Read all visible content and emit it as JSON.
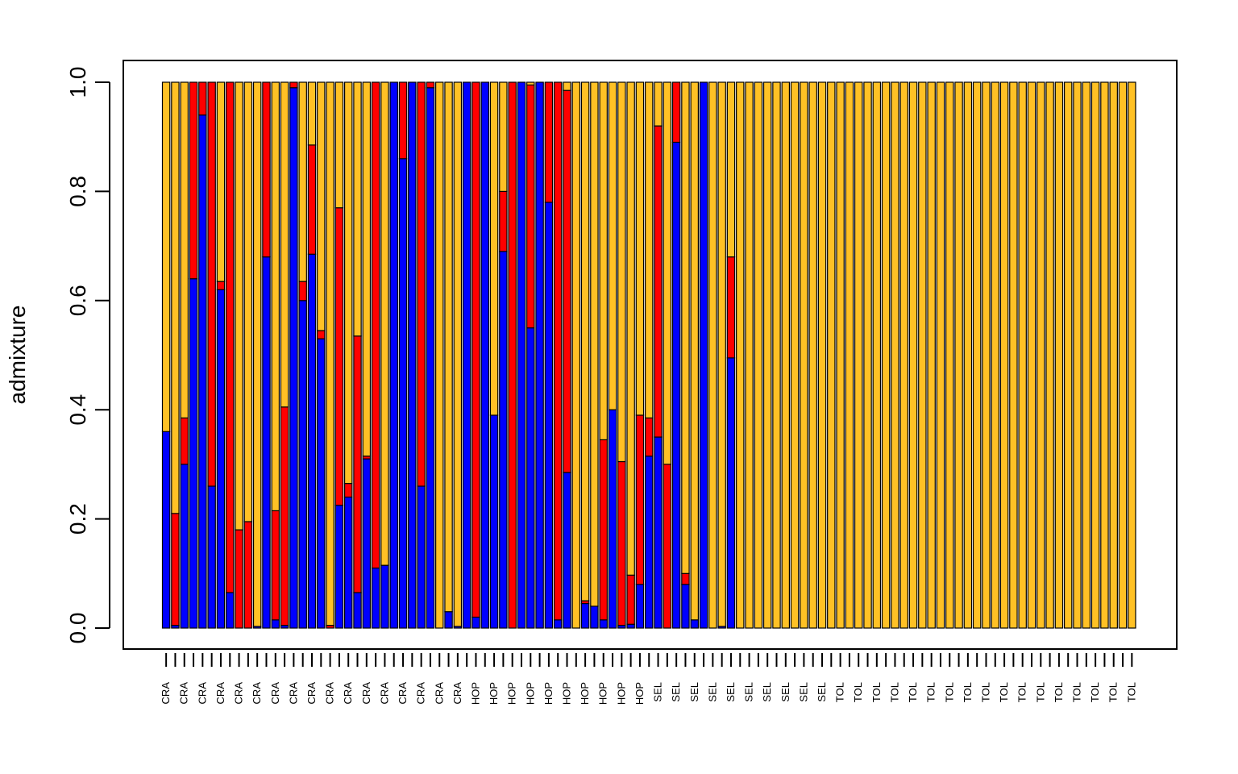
{
  "chart_data": {
    "type": "bar",
    "stacked": true,
    "ylabel": "admixture",
    "ylim": [
      0,
      1
    ],
    "yticks": [
      "0.0",
      "0.2",
      "0.4",
      "0.6",
      "0.8",
      "1.0"
    ],
    "colors": [
      "#0000FF",
      "#FF0000",
      "#FFC125"
    ],
    "categories": [
      "CRA",
      "CRA",
      "CRA",
      "CRA",
      "CRA",
      "CRA",
      "CRA",
      "CRA",
      "CRA",
      "CRA",
      "CRA",
      "CRA",
      "CRA",
      "CRA",
      "CRA",
      "CRA",
      "CRA",
      "CRA",
      "CRA",
      "CRA",
      "CRA",
      "CRA",
      "CRA",
      "CRA",
      "CRA",
      "CRA",
      "CRA",
      "CRA",
      "CRA",
      "CRA",
      "CRA",
      "CRA",
      "CRA",
      "HOP",
      "HOP",
      "HOP",
      "HOP",
      "HOP",
      "HOP",
      "HOP",
      "HOP",
      "HOP",
      "HOP",
      "HOP",
      "HOP",
      "HOP",
      "HOP",
      "HOP",
      "HOP",
      "HOP",
      "HOP",
      "HOP",
      "HOP",
      "SEL",
      "SEL",
      "SEL",
      "SEL",
      "SEL",
      "SEL",
      "SEL",
      "SEL",
      "SEL",
      "SEL",
      "SEL",
      "SEL",
      "SEL",
      "SEL",
      "SEL",
      "SEL",
      "SEL",
      "SEL",
      "SEL",
      "SEL",
      "SEL",
      "TOL",
      "TOL",
      "TOL",
      "TOL",
      "TOL",
      "TOL",
      "TOL",
      "TOL",
      "TOL",
      "TOL",
      "TOL",
      "TOL",
      "TOL",
      "TOL",
      "TOL",
      "TOL",
      "TOL",
      "TOL",
      "TOL",
      "TOL",
      "TOL",
      "TOL",
      "TOL",
      "TOL",
      "TOL",
      "TOL",
      "TOL",
      "TOL",
      "TOL",
      "TOL",
      "TOL",
      "TOL",
      "TOL"
    ],
    "series": [
      {
        "values": [
          0.36,
          0.005,
          0.3,
          0.64,
          0.94,
          0.26,
          0.62,
          0.065,
          0.0,
          0.0,
          0.003,
          0.68,
          0.015,
          0.005,
          0.99,
          0.6,
          0.685,
          0.53,
          0.0,
          0.225,
          0.24,
          0.065,
          0.31,
          0.11,
          0.115,
          1.0,
          0.86,
          1.0,
          0.26,
          0.99,
          0.0,
          0.03,
          0.003,
          1.0,
          0.02,
          1.0,
          0.39,
          0.69,
          0.0,
          1.0,
          0.55,
          1.0,
          0.78,
          0.015,
          0.285,
          0.0,
          0.045,
          0.04,
          0.015,
          0.4,
          0.005,
          0.007,
          0.08,
          0.315,
          0.35,
          0.0,
          0.89,
          0.08,
          0.015,
          1.0,
          0.0,
          0.003,
          0.495,
          0.0,
          0.0,
          0.0,
          0.0,
          0.0,
          0.0,
          0.0,
          0.0,
          0.0,
          0.0,
          0.0,
          0.0,
          0.0,
          0.0,
          0.0,
          0.0,
          0.0,
          0.0,
          0.0,
          0.0,
          0.0,
          0.0,
          0.0,
          0.0,
          0.0,
          0.0,
          0.0,
          0.0,
          0.0,
          0.0,
          0.0,
          0.0,
          0.0,
          0.0,
          0.0,
          0.0,
          0.0,
          0.0,
          0.0,
          0.0,
          0.0,
          0.0,
          0.0,
          0.0
        ]
      },
      {
        "values": [
          0.0,
          0.205,
          0.085,
          0.36,
          0.06,
          0.74,
          0.015,
          0.935,
          0.18,
          0.195,
          0.0,
          0.32,
          0.2,
          0.4,
          0.01,
          0.035,
          0.2,
          0.015,
          0.005,
          0.545,
          0.025,
          0.47,
          0.005,
          0.89,
          0.0,
          0.0,
          0.14,
          0.0,
          0.74,
          0.01,
          0.0,
          0.0,
          0.0,
          0.0,
          0.98,
          0.0,
          0.0,
          0.11,
          1.0,
          0.0,
          0.445,
          0.0,
          0.22,
          0.985,
          0.7,
          0.0,
          0.005,
          0.0,
          0.33,
          0.0,
          0.3,
          0.09,
          0.31,
          0.07,
          0.57,
          0.3,
          0.11,
          0.02,
          0.0,
          0.0,
          0.0,
          0.0,
          0.185,
          0.0,
          0.0,
          0.0,
          0.0,
          0.0,
          0.0,
          0.0,
          0.0,
          0.0,
          0.0,
          0.0,
          0.0,
          0.0,
          0.0,
          0.0,
          0.0,
          0.0,
          0.0,
          0.0,
          0.0,
          0.0,
          0.0,
          0.0,
          0.0,
          0.0,
          0.0,
          0.0,
          0.0,
          0.0,
          0.0,
          0.0,
          0.0,
          0.0,
          0.0,
          0.0,
          0.0,
          0.0,
          0.0,
          0.0,
          0.0,
          0.0,
          0.0,
          0.0,
          0.0
        ]
      }
    ]
  }
}
